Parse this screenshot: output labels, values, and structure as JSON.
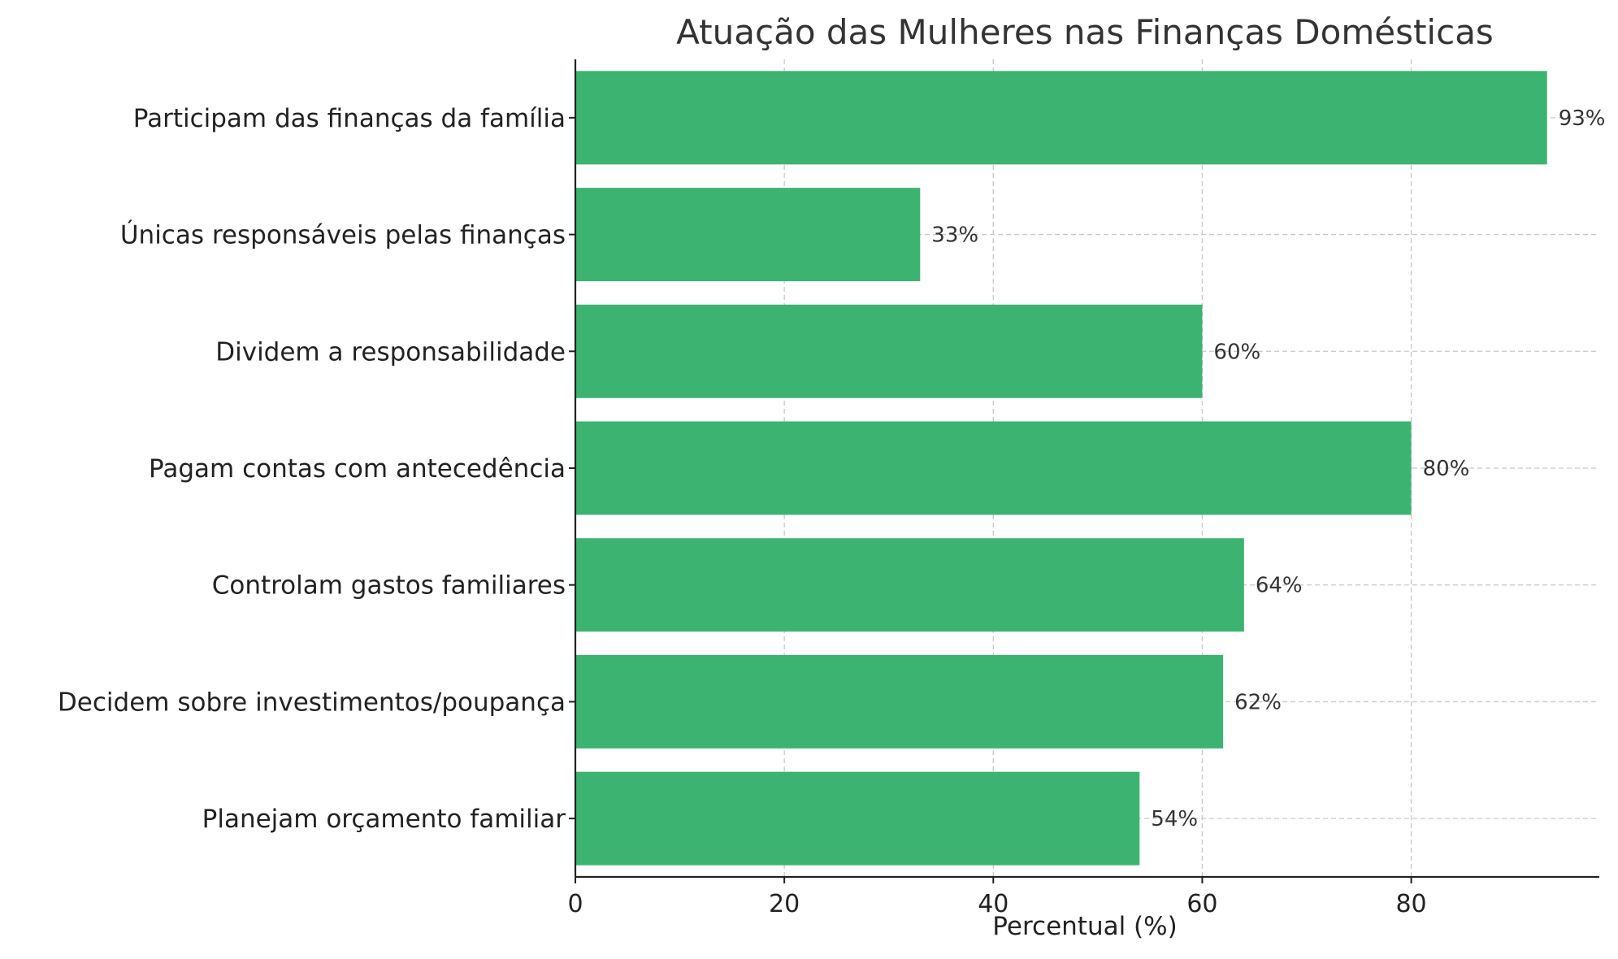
{
  "chart_data": {
    "type": "bar",
    "orientation": "horizontal",
    "title": "Atuação das Mulheres nas Finanças Domésticas",
    "xlabel": "Percentual (%)",
    "ylabel": "",
    "categories": [
      "Participam das finanças da família",
      "Únicas responsáveis pelas finanças",
      "Dividem a responsabilidade",
      "Pagam contas com antecedência",
      "Controlam gastos familiares",
      "Decidem sobre investimentos/poupança",
      "Planejam orçamento familiar"
    ],
    "values": [
      93,
      33,
      60,
      80,
      64,
      62,
      54
    ],
    "value_labels": [
      "93%",
      "33%",
      "60%",
      "80%",
      "64%",
      "62%",
      "54%"
    ],
    "xlim": [
      0,
      98
    ],
    "xticks": [
      0,
      20,
      40,
      60,
      80
    ],
    "xtick_labels": [
      "0",
      "20",
      "40",
      "60",
      "80"
    ],
    "grid": true,
    "bar_color": "#3cb371",
    "grid_color": "#c8c8c8",
    "axis_color": "#222222"
  }
}
